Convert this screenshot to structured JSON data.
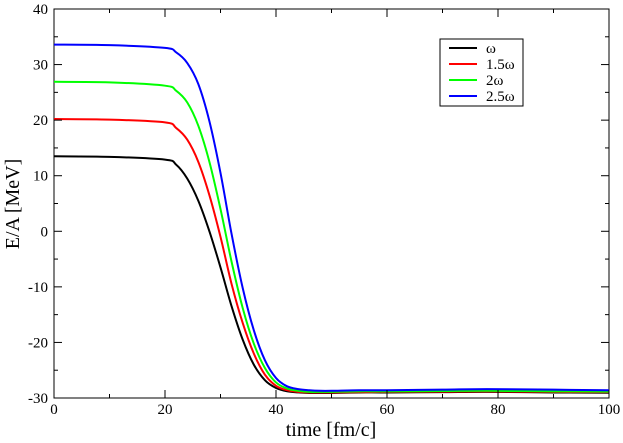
{
  "chart_data": {
    "type": "line",
    "title": "",
    "xlabel": "time [fm/c]",
    "ylabel": "E/A  [MeV]",
    "xlim": [
      0,
      100
    ],
    "ylim": [
      -30,
      40
    ],
    "xticks": [
      0,
      20,
      40,
      60,
      80,
      100
    ],
    "yticks": [
      -30,
      -20,
      -10,
      0,
      10,
      20,
      30,
      40
    ],
    "x_tick_labels": [
      "0",
      "20",
      "40",
      "60",
      "80",
      "100"
    ],
    "y_tick_labels": [
      "-30",
      "-20",
      "-10",
      "0",
      "10",
      "20",
      "30",
      "40"
    ],
    "grid": false,
    "legend_position": "top-right",
    "series": [
      {
        "name": "ω",
        "color": "#000000",
        "x": [
          0,
          10,
          20,
          22,
          24,
          26,
          28,
          30,
          32,
          34,
          36,
          38,
          40,
          42,
          44,
          46,
          48,
          50,
          55,
          60,
          70,
          78,
          90,
          100
        ],
        "y": [
          13.5,
          13.4,
          12.9,
          12.0,
          9.5,
          5.5,
          0.0,
          -6.5,
          -13.5,
          -19.5,
          -24.0,
          -26.8,
          -28.2,
          -28.8,
          -29.0,
          -29.1,
          -29.1,
          -29.1,
          -29.0,
          -29.0,
          -28.95,
          -28.9,
          -29.0,
          -29.05
        ]
      },
      {
        "name": "1.5ω",
        "color": "#ff0000",
        "x": [
          0,
          10,
          20,
          22,
          24,
          26,
          28,
          30,
          32,
          34,
          36,
          38,
          40,
          42,
          44,
          46,
          48,
          50,
          55,
          60,
          70,
          78,
          90,
          100
        ],
        "y": [
          20.2,
          20.1,
          19.6,
          18.6,
          16.5,
          12.5,
          6.5,
          -1.0,
          -9.5,
          -16.5,
          -22.0,
          -25.8,
          -27.8,
          -28.6,
          -28.9,
          -29.0,
          -29.0,
          -29.0,
          -28.95,
          -28.9,
          -28.85,
          -28.8,
          -28.9,
          -28.95
        ]
      },
      {
        "name": "2ω",
        "color": "#00ff00",
        "x": [
          0,
          10,
          20,
          22,
          24,
          26,
          28,
          30,
          32,
          34,
          36,
          38,
          40,
          42,
          44,
          46,
          48,
          50,
          55,
          60,
          70,
          78,
          90,
          100
        ],
        "y": [
          26.9,
          26.8,
          26.2,
          25.3,
          23.2,
          19.0,
          12.5,
          4.0,
          -5.5,
          -13.8,
          -20.2,
          -24.6,
          -27.2,
          -28.3,
          -28.7,
          -28.9,
          -28.9,
          -28.9,
          -28.8,
          -28.8,
          -28.75,
          -28.7,
          -28.8,
          -28.85
        ]
      },
      {
        "name": "2.5ω",
        "color": "#0000ff",
        "x": [
          0,
          10,
          20,
          22,
          24,
          26,
          28,
          30,
          32,
          34,
          36,
          38,
          40,
          42,
          44,
          46,
          48,
          50,
          55,
          60,
          70,
          78,
          90,
          100
        ],
        "y": [
          33.6,
          33.5,
          33.0,
          32.2,
          30.3,
          26.5,
          19.8,
          10.5,
          -0.5,
          -10.2,
          -17.8,
          -23.2,
          -26.4,
          -27.9,
          -28.4,
          -28.6,
          -28.7,
          -28.7,
          -28.6,
          -28.6,
          -28.5,
          -28.4,
          -28.5,
          -28.6
        ]
      }
    ]
  }
}
